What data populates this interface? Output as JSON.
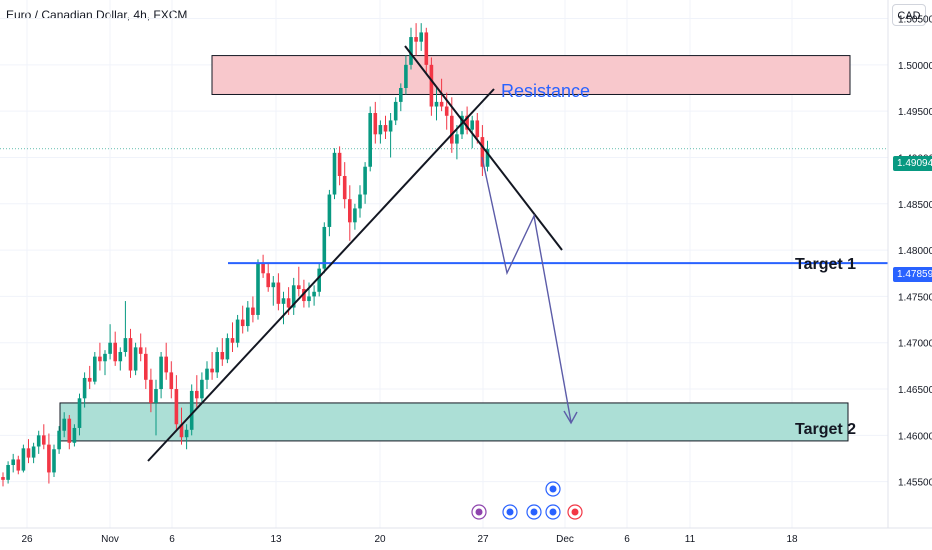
{
  "header": {
    "title": "Euro / Canadian Dollar, 4h, FXCM",
    "currency": "CAD"
  },
  "colors": {
    "up": "#089981",
    "down": "#f23645",
    "resistance_fill": "#f8c8cc",
    "support_fill": "#acdfd6",
    "target_line": "#2962ff",
    "projection": "#5c5ca8",
    "annotation_text": "#2962ff"
  },
  "chart_data": {
    "type": "candlestick",
    "title": "Euro / Canadian Dollar, 4h, FXCM",
    "ylim": [
      1.45,
      1.507
    ],
    "y_ticks": [
      "1.45500",
      "1.46000",
      "1.46500",
      "1.47000",
      "1.47500",
      "1.48000",
      "1.48500",
      "1.49000",
      "1.49500",
      "1.50000",
      "1.50500"
    ],
    "x_ticks": [
      "26",
      "Nov",
      "6",
      "13",
      "20",
      "27",
      "Dec",
      "6",
      "11",
      "18"
    ],
    "last_price": "1.49094",
    "target1_price": "1.47859",
    "annotations": {
      "resistance": "Resistance",
      "target1": "Target 1",
      "target2": "Target 2"
    },
    "zones": [
      {
        "name": "resistance",
        "from": 1.4968,
        "to": 1.501
      },
      {
        "name": "target-2",
        "from": 1.4594,
        "to": 1.4635
      }
    ],
    "candles": [
      [
        1.4555,
        1.456,
        1.4545,
        1.4552
      ],
      [
        1.4552,
        1.4572,
        1.4548,
        1.4568
      ],
      [
        1.4568,
        1.458,
        1.456,
        1.4574
      ],
      [
        1.4574,
        1.4578,
        1.4558,
        1.4562
      ],
      [
        1.4562,
        1.459,
        1.456,
        1.4586
      ],
      [
        1.4586,
        1.4596,
        1.457,
        1.4576
      ],
      [
        1.4576,
        1.4592,
        1.457,
        1.4588
      ],
      [
        1.4588,
        1.4605,
        1.458,
        1.46
      ],
      [
        1.46,
        1.4612,
        1.4585,
        1.459
      ],
      [
        1.459,
        1.4602,
        1.4548,
        1.456
      ],
      [
        1.456,
        1.459,
        1.4555,
        1.4585
      ],
      [
        1.4585,
        1.461,
        1.458,
        1.4605
      ],
      [
        1.4605,
        1.4625,
        1.4598,
        1.4618
      ],
      [
        1.4618,
        1.4622,
        1.4585,
        1.4592
      ],
      [
        1.4592,
        1.4612,
        1.4588,
        1.4608
      ],
      [
        1.4608,
        1.4645,
        1.46,
        1.464
      ],
      [
        1.464,
        1.4668,
        1.463,
        1.4662
      ],
      [
        1.4662,
        1.4675,
        1.465,
        1.4658
      ],
      [
        1.4658,
        1.469,
        1.4655,
        1.4685
      ],
      [
        1.4685,
        1.47,
        1.467,
        1.468
      ],
      [
        1.468,
        1.4692,
        1.4665,
        1.4688
      ],
      [
        1.4688,
        1.472,
        1.4682,
        1.47
      ],
      [
        1.47,
        1.4712,
        1.4675,
        1.468
      ],
      [
        1.468,
        1.4695,
        1.467,
        1.469
      ],
      [
        1.469,
        1.4745,
        1.4685,
        1.4705
      ],
      [
        1.4705,
        1.4715,
        1.4662,
        1.467
      ],
      [
        1.467,
        1.47,
        1.4665,
        1.4695
      ],
      [
        1.4695,
        1.471,
        1.468,
        1.4688
      ],
      [
        1.4688,
        1.4695,
        1.465,
        1.466
      ],
      [
        1.466,
        1.4672,
        1.4625,
        1.4635
      ],
      [
        1.4635,
        1.466,
        1.46,
        1.465
      ],
      [
        1.465,
        1.469,
        1.464,
        1.4685
      ],
      [
        1.4685,
        1.47,
        1.466,
        1.4668
      ],
      [
        1.4668,
        1.468,
        1.464,
        1.465
      ],
      [
        1.465,
        1.4665,
        1.4605,
        1.4612
      ],
      [
        1.4612,
        1.463,
        1.459,
        1.4598
      ],
      [
        1.4598,
        1.4612,
        1.4585,
        1.4606
      ],
      [
        1.4606,
        1.4655,
        1.46,
        1.4648
      ],
      [
        1.4648,
        1.4665,
        1.463,
        1.464
      ],
      [
        1.464,
        1.4668,
        1.4635,
        1.466
      ],
      [
        1.466,
        1.468,
        1.465,
        1.4672
      ],
      [
        1.4672,
        1.469,
        1.466,
        1.4668
      ],
      [
        1.4668,
        1.4695,
        1.4662,
        1.469
      ],
      [
        1.469,
        1.4705,
        1.4675,
        1.4682
      ],
      [
        1.4682,
        1.471,
        1.4678,
        1.4705
      ],
      [
        1.4705,
        1.4722,
        1.469,
        1.47
      ],
      [
        1.47,
        1.473,
        1.4695,
        1.4725
      ],
      [
        1.4725,
        1.474,
        1.471,
        1.4718
      ],
      [
        1.4718,
        1.4745,
        1.4712,
        1.4738
      ],
      [
        1.4738,
        1.475,
        1.4722,
        1.473
      ],
      [
        1.473,
        1.479,
        1.4725,
        1.4785
      ],
      [
        1.4785,
        1.4795,
        1.477,
        1.4775
      ],
      [
        1.4775,
        1.4785,
        1.4755,
        1.476
      ],
      [
        1.476,
        1.4772,
        1.474,
        1.4765
      ],
      [
        1.4765,
        1.4775,
        1.4735,
        1.4742
      ],
      [
        1.4742,
        1.4755,
        1.472,
        1.4748
      ],
      [
        1.4748,
        1.476,
        1.473,
        1.4738
      ],
      [
        1.4738,
        1.477,
        1.473,
        1.4762
      ],
      [
        1.4762,
        1.4782,
        1.475,
        1.4758
      ],
      [
        1.4758,
        1.4768,
        1.4738,
        1.4745
      ],
      [
        1.4745,
        1.4765,
        1.4738,
        1.475
      ],
      [
        1.475,
        1.4762,
        1.474,
        1.4755
      ],
      [
        1.4755,
        1.4785,
        1.475,
        1.478
      ],
      [
        1.478,
        1.483,
        1.4775,
        1.4825
      ],
      [
        1.4825,
        1.4865,
        1.4815,
        1.486
      ],
      [
        1.486,
        1.491,
        1.4855,
        1.4905
      ],
      [
        1.4905,
        1.4912,
        1.487,
        1.488
      ],
      [
        1.488,
        1.4895,
        1.4845,
        1.4855
      ],
      [
        1.4855,
        1.487,
        1.481,
        1.483
      ],
      [
        1.483,
        1.485,
        1.4822,
        1.4845
      ],
      [
        1.4845,
        1.487,
        1.4835,
        1.486
      ],
      [
        1.486,
        1.4895,
        1.485,
        1.489
      ],
      [
        1.489,
        1.4955,
        1.4885,
        1.4948
      ],
      [
        1.4948,
        1.496,
        1.4915,
        1.4925
      ],
      [
        1.4925,
        1.494,
        1.4915,
        1.4935
      ],
      [
        1.4935,
        1.4945,
        1.492,
        1.4928
      ],
      [
        1.4928,
        1.4948,
        1.49,
        1.494
      ],
      [
        1.494,
        1.4965,
        1.4935,
        1.496
      ],
      [
        1.496,
        1.498,
        1.495,
        1.4975
      ],
      [
        1.4975,
        1.501,
        1.4968,
        1.5
      ],
      [
        1.5,
        1.504,
        1.4995,
        1.503
      ],
      [
        1.503,
        1.5045,
        1.501,
        1.5025
      ],
      [
        1.5025,
        1.5045,
        1.5015,
        1.5035
      ],
      [
        1.5035,
        1.504,
        1.499,
        1.5
      ],
      [
        1.5,
        1.5008,
        1.4945,
        1.4955
      ],
      [
        1.4955,
        1.4975,
        1.494,
        1.496
      ],
      [
        1.496,
        1.4985,
        1.495,
        1.4955
      ],
      [
        1.4955,
        1.497,
        1.493,
        1.4945
      ],
      [
        1.4945,
        1.4965,
        1.4905,
        1.4915
      ],
      [
        1.4915,
        1.4935,
        1.4898,
        1.4925
      ],
      [
        1.4925,
        1.495,
        1.492,
        1.4945
      ],
      [
        1.4945,
        1.4955,
        1.4925,
        1.493
      ],
      [
        1.493,
        1.4945,
        1.491,
        1.494
      ],
      [
        1.494,
        1.4948,
        1.4915,
        1.4922
      ],
      [
        1.4922,
        1.4935,
        1.488,
        1.489
      ],
      [
        1.489,
        1.4918,
        1.4885,
        1.4909
      ]
    ]
  }
}
